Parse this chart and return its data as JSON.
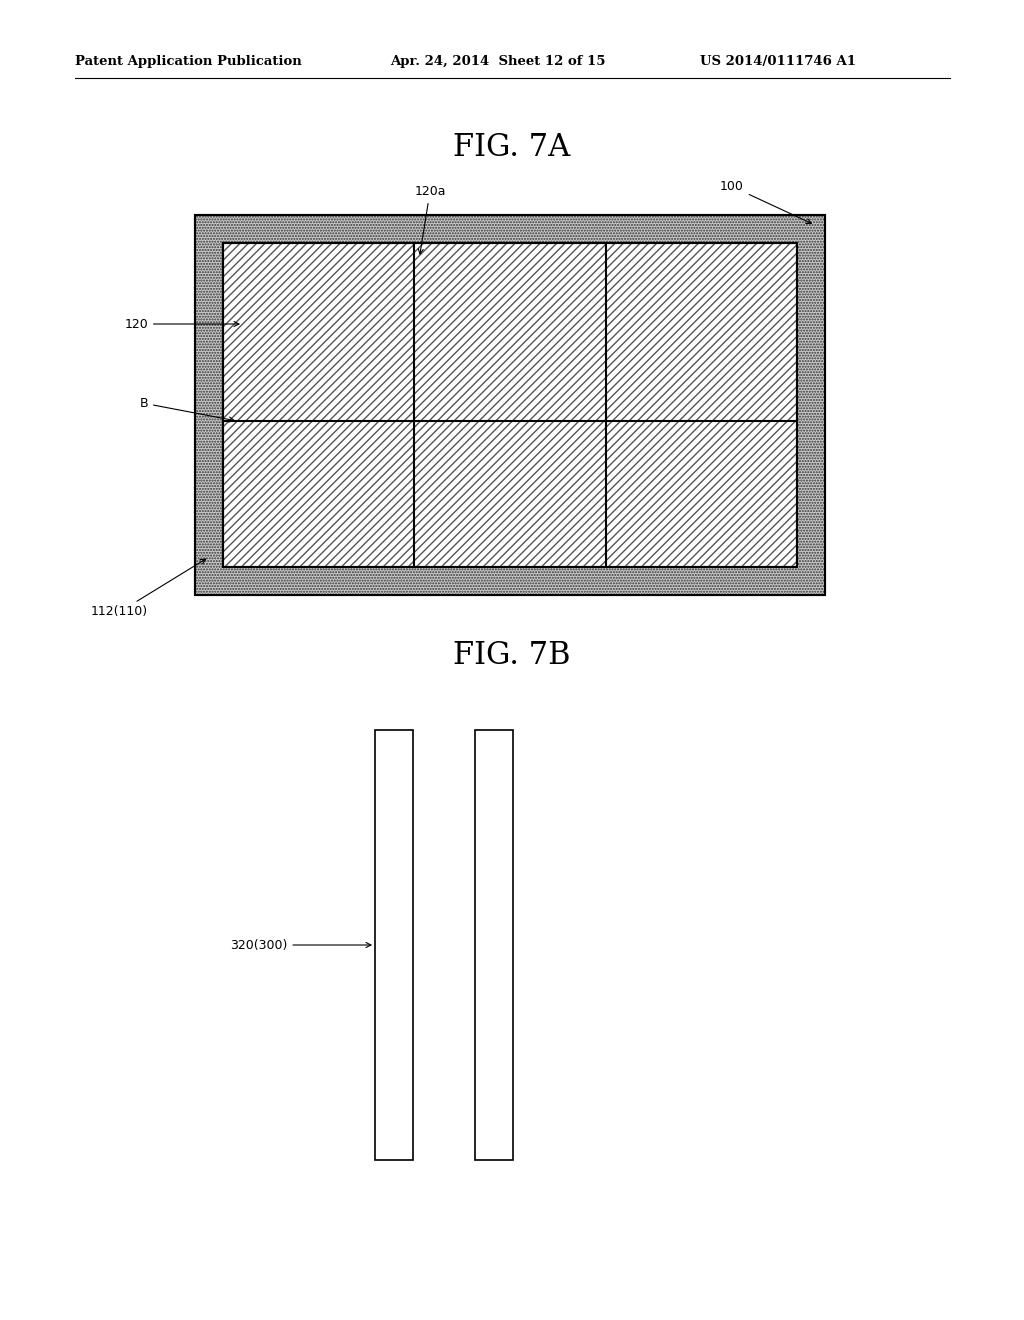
{
  "bg_color": "#ffffff",
  "header_text": "Patent Application Publication",
  "header_date": "Apr. 24, 2014  Sheet 12 of 15",
  "header_patent": "US 2014/0111746 A1",
  "fig7a_title": "FIG. 7A",
  "fig7b_title": "FIG. 7B",
  "label_120a": "120a",
  "label_100": "100",
  "label_120": "120",
  "label_B": "B",
  "label_112": "112(110)",
  "label_320": "320(300)",
  "outer_border_color": "#b0b0b0",
  "hatch_color": "#666666",
  "line_color": "#000000"
}
